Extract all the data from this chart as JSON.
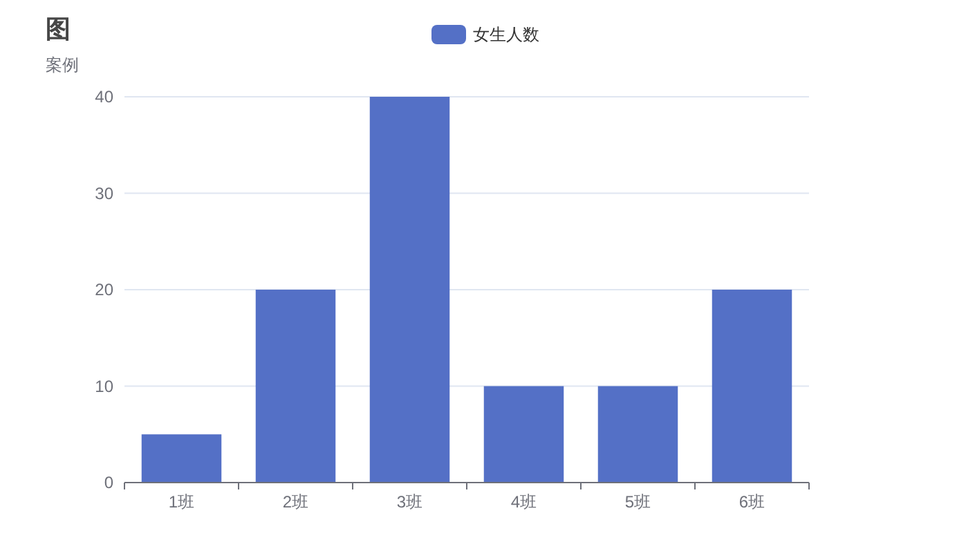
{
  "chart_data": {
    "type": "bar",
    "title": "图",
    "subtitle": "案例",
    "categories": [
      "1班",
      "2班",
      "3班",
      "4班",
      "5班",
      "6班"
    ],
    "series": [
      {
        "name": "女生人数",
        "color": "#5470c6",
        "values": [
          5,
          20,
          40,
          10,
          10,
          20
        ]
      }
    ],
    "ylim": [
      0,
      40
    ],
    "yticks": [
      0,
      10,
      20,
      30,
      40
    ],
    "grid": "y",
    "legend": "top"
  }
}
